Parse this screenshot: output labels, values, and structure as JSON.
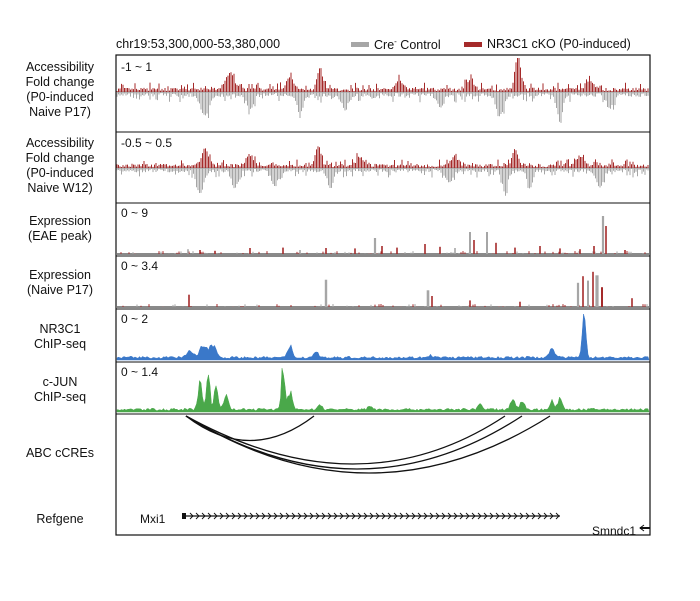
{
  "header": {
    "region": "chr19:53,300,000-53,380,000",
    "legend": [
      {
        "label": "Cre",
        "superscript": "-",
        "suffix": " Control",
        "color": "#a6a6a6"
      },
      {
        "label": "NR3C1 cKO (P0-induced)",
        "superscript": "",
        "suffix": "",
        "color": "#a52a2a"
      }
    ]
  },
  "tracks": [
    {
      "id": "atac-p17",
      "label": [
        "Accessibility",
        "Fold change",
        "(P0-induced",
        "Naive P17)"
      ],
      "range": "-1 ~ 1",
      "kind": "diverging"
    },
    {
      "id": "atac-w12",
      "label": [
        "Accessibility",
        "Fold change",
        "(P0-induced",
        "Naive W12)"
      ],
      "range": "-0.5 ~ 0.5",
      "kind": "diverging"
    },
    {
      "id": "expr-eae",
      "label": [
        "Expression",
        "(EAE peak)"
      ],
      "range": "0 ~ 9",
      "kind": "overlay"
    },
    {
      "id": "expr-p17",
      "label": [
        "Expression",
        "(Naive P17)"
      ],
      "range": "0 ~ 3.4",
      "kind": "overlay"
    },
    {
      "id": "chip-nr3c1",
      "label": [
        "NR3C1",
        "ChIP-seq"
      ],
      "range": "0 ~ 2",
      "kind": "chip",
      "color": "#3a78c9"
    },
    {
      "id": "chip-cjun",
      "label": [
        "c-JUN",
        "ChIP-seq"
      ],
      "range": "0 ~ 1.4",
      "kind": "chip",
      "color": "#4aa84a"
    }
  ],
  "abc_label": "ABC cCREs",
  "refgene": {
    "label": "Refgene",
    "genes": [
      "Mxi1",
      "Smndc1"
    ]
  },
  "colors": {
    "control": "#a6a6a6",
    "cko": "#a52a2a",
    "nr3c1": "#3a78c9",
    "cjun": "#4aa84a",
    "loop": "#111111"
  }
}
